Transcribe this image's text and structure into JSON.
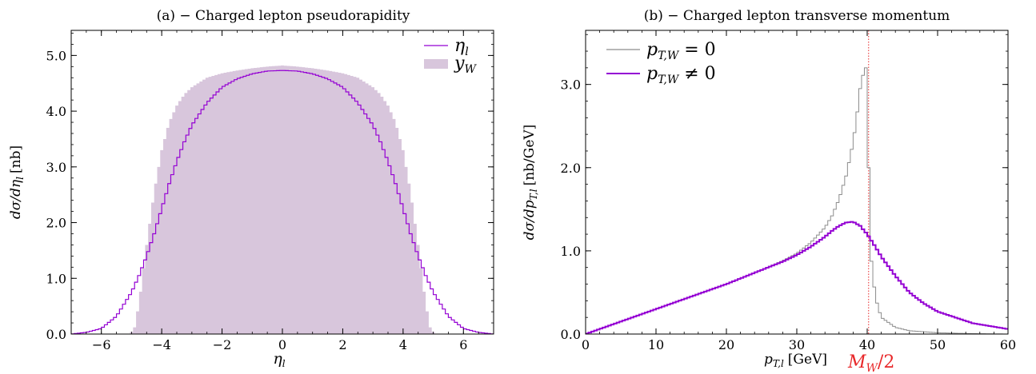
{
  "colors": {
    "purple": "#9400d3",
    "fill": "#d8c6dc",
    "gray": "#8c8c8c",
    "red": "#e8282a"
  },
  "chart_data": [
    {
      "type": "line",
      "panel_title": "(a) − Charged lepton pseudorapidity",
      "xlabel": "η",
      "xlabel_sub": "l",
      "ylabel": "dσ/dη",
      "ylabel_sub": "l",
      "ylabel_unit": "[nb]",
      "xlim": [
        -7,
        7
      ],
      "ylim": [
        0,
        5.45
      ],
      "xticks": [
        -6,
        -4,
        -2,
        0,
        2,
        4,
        6
      ],
      "xtick_labels": [
        "−6",
        "−4",
        "−2",
        "0",
        "2",
        "4",
        "6"
      ],
      "yticks": [
        0,
        1,
        2,
        3,
        4,
        5
      ],
      "ytick_labels": [
        "0.0",
        "1.0",
        "2.0",
        "3.0",
        "4.0",
        "5.0"
      ],
      "legend_position": "top-right",
      "series": [
        {
          "name": "η",
          "name_sub": "l",
          "style": "step-line",
          "color": "#9400d3",
          "x": [
            -7.0,
            -6.5,
            -6.0,
            -5.5,
            -5.0,
            -4.75,
            -4.5,
            -4.25,
            -4.0,
            -3.75,
            -3.5,
            -3.25,
            -3.0,
            -2.5,
            -2.0,
            -1.5,
            -1.0,
            -0.5,
            0.0,
            0.5,
            1.0,
            1.5,
            2.0,
            2.5,
            3.0,
            3.25,
            3.5,
            3.75,
            4.0,
            4.25,
            4.5,
            4.75,
            5.0,
            5.5,
            6.0,
            6.5,
            7.0
          ],
          "y": [
            0.0,
            0.03,
            0.1,
            0.32,
            0.75,
            1.05,
            1.4,
            1.8,
            2.25,
            2.7,
            3.1,
            3.45,
            3.75,
            4.15,
            4.43,
            4.58,
            4.67,
            4.72,
            4.73,
            4.72,
            4.67,
            4.58,
            4.43,
            4.15,
            3.75,
            3.45,
            3.1,
            2.7,
            2.25,
            1.8,
            1.4,
            1.05,
            0.75,
            0.32,
            0.1,
            0.03,
            0.0
          ]
        },
        {
          "name": "y",
          "name_sub": "W",
          "style": "filled-step",
          "color": "#d8c6dc",
          "x": [
            -5.05,
            -4.9,
            -4.75,
            -4.5,
            -4.25,
            -4.0,
            -3.75,
            -3.5,
            -3.25,
            -3.0,
            -2.5,
            -2.0,
            -1.5,
            -1.0,
            -0.5,
            0.0,
            0.5,
            1.0,
            1.5,
            2.0,
            2.5,
            3.0,
            3.25,
            3.5,
            3.75,
            4.0,
            4.25,
            4.5,
            4.75,
            4.9,
            5.05
          ],
          "y": [
            0.0,
            0.12,
            0.55,
            1.6,
            2.55,
            3.3,
            3.8,
            4.1,
            4.3,
            4.43,
            4.6,
            4.68,
            4.73,
            4.77,
            4.8,
            4.82,
            4.8,
            4.77,
            4.73,
            4.68,
            4.6,
            4.43,
            4.3,
            4.1,
            3.8,
            3.3,
            2.55,
            1.6,
            0.55,
            0.12,
            0.0
          ]
        }
      ]
    },
    {
      "type": "line",
      "panel_title": "(b) − Charged lepton transverse momentum",
      "xlabel": "p",
      "xlabel_sub": "T,l",
      "xlabel_unit": "[GeV]",
      "ylabel": "dσ/dp",
      "ylabel_sub": "T,l",
      "ylabel_unit": "[nb/GeV]",
      "xlim": [
        0,
        60
      ],
      "ylim": [
        0,
        3.65
      ],
      "xticks": [
        0,
        10,
        20,
        30,
        40,
        50,
        60
      ],
      "xtick_labels": [
        "0",
        "10",
        "20",
        "30",
        "40",
        "50",
        "60"
      ],
      "yticks": [
        0,
        1,
        2,
        3
      ],
      "ytick_labels": [
        "0.0",
        "1.0",
        "2.0",
        "3.0"
      ],
      "legend_position": "top-left",
      "vline": {
        "x": 40.2,
        "label": "M",
        "label_sub": "W",
        "label_suffix": "/2",
        "color": "#e8282a"
      },
      "series": [
        {
          "name": "p",
          "name_sub": "T,W",
          "name_suffix": " = 0",
          "style": "step-line",
          "color": "#8c8c8c",
          "x": [
            0,
            10,
            20,
            25,
            28,
            30,
            32,
            34,
            35,
            36,
            37,
            38,
            38.5,
            39,
            39.5,
            39.8,
            40.2,
            40.4,
            40.8,
            41.2,
            42,
            44,
            46,
            50,
            55,
            60
          ],
          "y": [
            0,
            0.3,
            0.6,
            0.77,
            0.88,
            0.97,
            1.1,
            1.28,
            1.42,
            1.62,
            1.9,
            2.3,
            2.6,
            2.95,
            3.15,
            3.2,
            2.0,
            1.05,
            0.7,
            0.43,
            0.2,
            0.08,
            0.04,
            0.015,
            0.005,
            0.0
          ]
        },
        {
          "name": "p",
          "name_sub": "T,W",
          "name_suffix": " ≠ 0",
          "style": "step-line",
          "color": "#9400d3",
          "x": [
            0,
            10,
            20,
            25,
            28,
            30,
            32,
            34,
            35,
            36,
            37,
            38,
            39,
            40,
            41,
            42,
            44,
            46,
            48,
            50,
            55,
            60
          ],
          "y": [
            0,
            0.3,
            0.6,
            0.77,
            0.87,
            0.95,
            1.05,
            1.17,
            1.24,
            1.3,
            1.34,
            1.35,
            1.3,
            1.2,
            1.07,
            0.93,
            0.7,
            0.5,
            0.37,
            0.27,
            0.13,
            0.06
          ]
        }
      ]
    }
  ]
}
